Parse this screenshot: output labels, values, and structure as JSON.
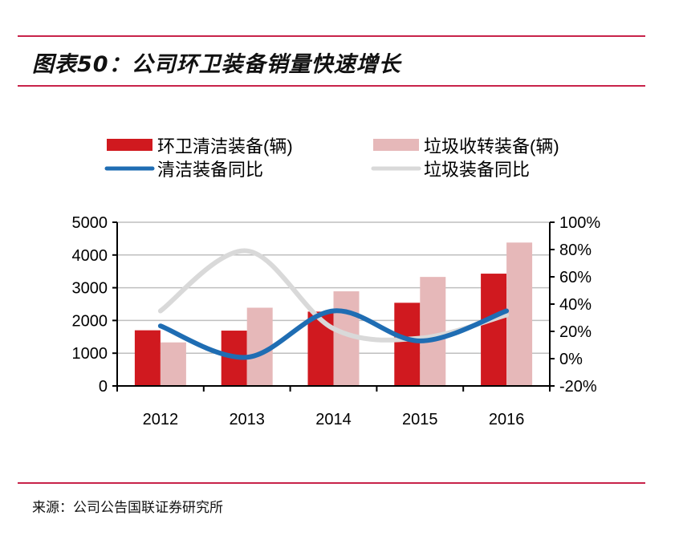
{
  "title": "图表50：公司环卫装备销量快速增长",
  "source": "来源：公司公告国联证券研究所",
  "chart_data": {
    "type": "bar",
    "categories": [
      "2012",
      "2013",
      "2014",
      "2015",
      "2016"
    ],
    "series": [
      {
        "name": "环卫清洁装备(辆)",
        "kind": "bar",
        "axis": "left",
        "color": "#d0191f",
        "values": [
          1700,
          1690,
          2270,
          2540,
          3430
        ]
      },
      {
        "name": "垃圾收转装备(辆)",
        "kind": "bar",
        "axis": "left",
        "color": "#e6b8b9",
        "values": [
          1330,
          2390,
          2890,
          3330,
          4380
        ]
      },
      {
        "name": "清洁装备同比",
        "kind": "line",
        "axis": "right",
        "color": "#1f6db3",
        "values": [
          0.24,
          0.01,
          0.35,
          0.13,
          0.35
        ]
      },
      {
        "name": "垃圾装备同比",
        "kind": "line",
        "axis": "right",
        "color": "#d9d9d9",
        "values": [
          0.35,
          0.79,
          0.22,
          0.15,
          0.32
        ]
      }
    ],
    "left_axis": {
      "ylim": [
        0,
        5000
      ],
      "ticks": [
        "0",
        "1000",
        "2000",
        "3000",
        "4000",
        "5000"
      ]
    },
    "right_axis": {
      "ylim": [
        -0.2,
        1.0
      ],
      "ticks": [
        "-20%",
        "0%",
        "20%",
        "40%",
        "60%",
        "80%",
        "100%"
      ]
    },
    "grid": true,
    "legend_placement": "top",
    "line_style": "smooth"
  }
}
